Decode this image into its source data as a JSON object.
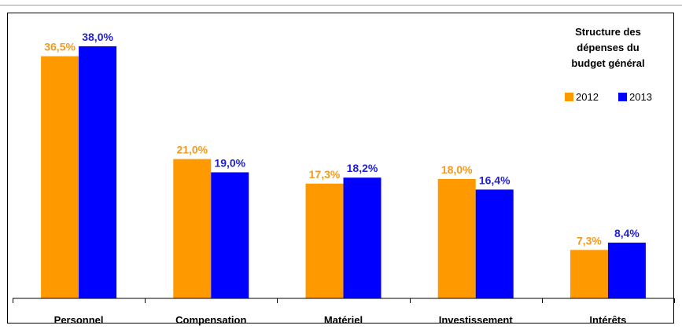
{
  "chart_data": {
    "type": "bar",
    "title_lines": [
      "Structure des",
      "dépenses du",
      "budget général"
    ],
    "categories": [
      "Personnel",
      "Compensation",
      "Matériel",
      "Investissement",
      "Intérêts"
    ],
    "series": [
      {
        "name": "2012",
        "color": "#FF9900",
        "values": [
          36.5,
          21.0,
          17.3,
          18.0,
          7.3
        ],
        "labels": [
          "36,5%",
          "21,0%",
          "17,3%",
          "18,0%",
          "7,3%"
        ]
      },
      {
        "name": "2013",
        "color": "#0000FF",
        "values": [
          38.0,
          19.0,
          18.2,
          16.4,
          8.4
        ],
        "labels": [
          "38,0%",
          "19,0%",
          "18,2%",
          "16,4%",
          "8,4%"
        ]
      }
    ],
    "label_colors": {
      "2012": "#F39A1E",
      "2013": "#1F1FD6"
    },
    "ylim": [
      0,
      40
    ],
    "legend_position": "top-right",
    "grid": false
  }
}
